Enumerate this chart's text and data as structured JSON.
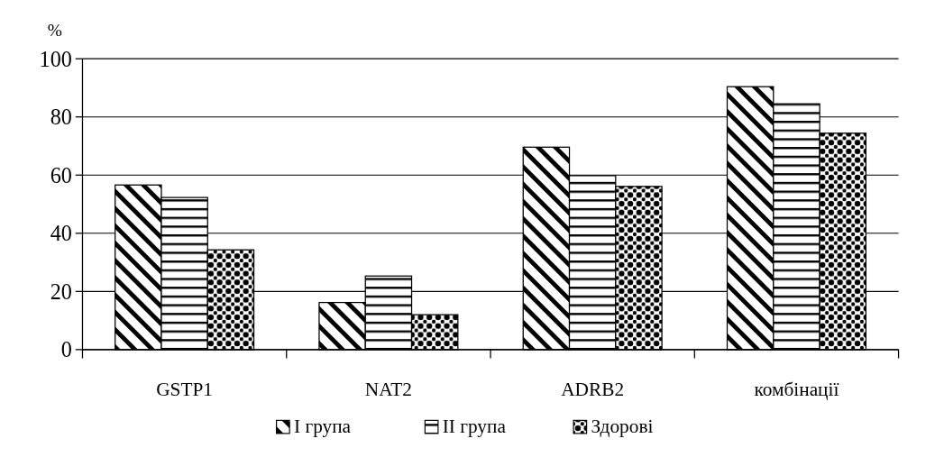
{
  "chart_data": {
    "type": "bar",
    "ylabel": "%",
    "categories": [
      "GSTP1",
      "NAT2",
      "ADRB2",
      "комбінації"
    ],
    "series": [
      {
        "name": "I група",
        "color": "#000000",
        "values": [
          56.6,
          16.2,
          69.6,
          90.4
        ]
      },
      {
        "name": "II група",
        "color": "#000000",
        "values": [
          52.3,
          25.3,
          59.8,
          84.5
        ]
      },
      {
        "name": "Здорові",
        "color": "#000000",
        "values": [
          34.3,
          12.0,
          56.1,
          74.4
        ]
      }
    ],
    "ylim": [
      0,
      100
    ],
    "yticks": [
      0,
      20,
      40,
      60,
      80,
      100
    ],
    "grid": "y",
    "legend": "bottom"
  }
}
